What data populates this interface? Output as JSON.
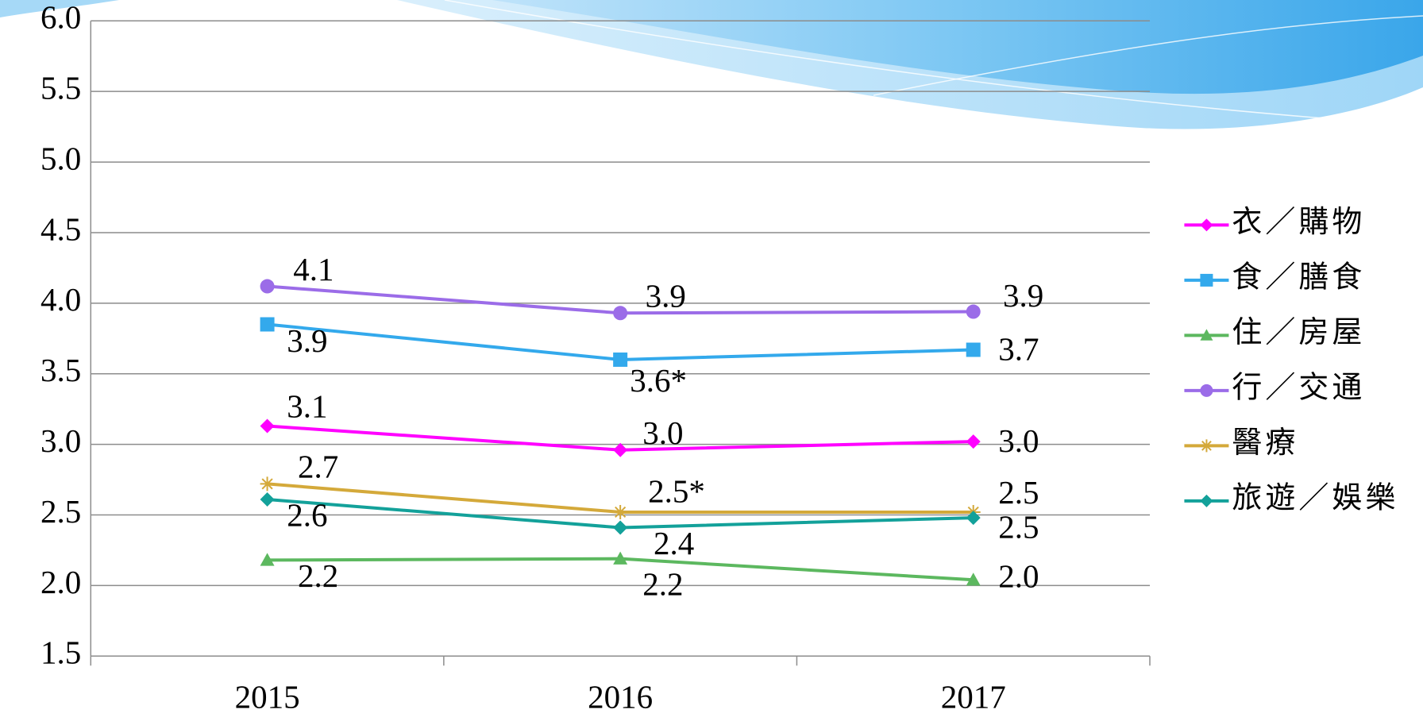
{
  "chart_data": {
    "type": "line",
    "categories": [
      "2015",
      "2016",
      "2017"
    ],
    "ylim": [
      1.5,
      6.0
    ],
    "yticks": [
      1.5,
      {
        "value": 2.0,
        "label": "2.0"
      },
      2.5,
      {
        "value": 3.0,
        "label": "3.0"
      },
      3.5,
      {
        "value": 4.0,
        "label": "4.0"
      },
      4.5,
      {
        "value": 5.0,
        "label": "5.0"
      },
      5.5,
      {
        "value": 6.0,
        "label": "6.0"
      }
    ],
    "grid": true,
    "legend": "right",
    "series": [
      {
        "name": "衣／購物",
        "color": "#ff00ff",
        "marker": "diamond",
        "values": [
          3.13,
          2.96,
          3.02
        ],
        "value_labels": [
          "3.1",
          "3.0",
          "3.0"
        ]
      },
      {
        "name": "食／膳食",
        "color": "#33a9ec",
        "marker": "square",
        "values": [
          3.85,
          3.6,
          3.67
        ],
        "value_labels": [
          "3.9",
          "3.6*",
          "3.7"
        ]
      },
      {
        "name": "住／房屋",
        "color": "#5cb85f",
        "marker": "triangle",
        "values": [
          2.18,
          2.19,
          2.04
        ],
        "value_labels": [
          "2.2",
          "2.2",
          "2.0"
        ]
      },
      {
        "name": "行／交通",
        "color": "#9b6ce8",
        "marker": "circle",
        "values": [
          4.12,
          3.93,
          3.94
        ],
        "value_labels": [
          "4.1",
          "3.9",
          "3.9"
        ]
      },
      {
        "name": "醫療",
        "color": "#d4a93a",
        "marker": "star",
        "values": [
          2.72,
          2.52,
          2.52
        ],
        "value_labels": [
          "2.7",
          "2.5*",
          "2.5"
        ]
      },
      {
        "name": "旅遊／娛樂",
        "color": "#13a19a",
        "marker": "diamond",
        "values": [
          2.61,
          2.41,
          2.48
        ],
        "value_labels": [
          "2.6",
          "2.4",
          "2.5"
        ]
      }
    ]
  }
}
